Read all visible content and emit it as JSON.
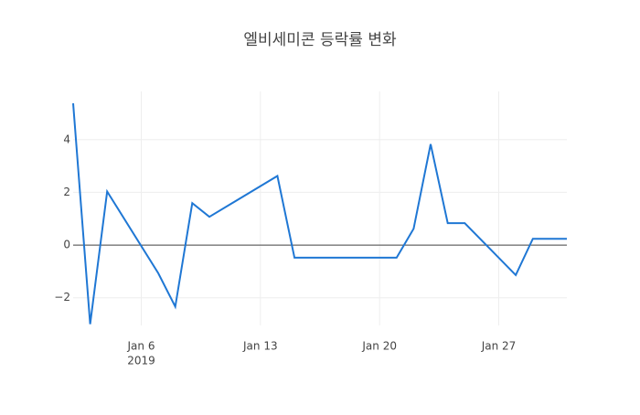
{
  "chart_data": {
    "type": "line",
    "title": "엘비세미콘 등락률 변화",
    "x": [
      "2019-01-02",
      "2019-01-03",
      "2019-01-04",
      "2019-01-07",
      "2019-01-08",
      "2019-01-09",
      "2019-01-10",
      "2019-01-14",
      "2019-01-15",
      "2019-01-16",
      "2019-01-17",
      "2019-01-18",
      "2019-01-21",
      "2019-01-22",
      "2019-01-23",
      "2019-01-24",
      "2019-01-25",
      "2019-01-28",
      "2019-01-29",
      "2019-01-30",
      "2019-01-31"
    ],
    "series": [
      {
        "name": "등락률",
        "color": "#1f77d4",
        "values": [
          5.38,
          -3.0,
          2.03,
          -1.07,
          -2.34,
          1.59,
          1.07,
          2.62,
          -0.48,
          -0.48,
          -0.48,
          -0.48,
          -0.48,
          0.62,
          3.83,
          0.83,
          0.83,
          -1.14,
          0.24,
          0.24,
          0.24
        ]
      }
    ],
    "xlim": [
      "2019-01-02",
      "2019-01-31"
    ],
    "xticks": [
      {
        "value": "2019-01-06",
        "label": "Jan 6"
      },
      {
        "value": "2019-01-13",
        "label": "Jan 13"
      },
      {
        "value": "2019-01-20",
        "label": "Jan 20"
      },
      {
        "value": "2019-01-27",
        "label": "Jan 27"
      }
    ],
    "x_year_label": "2019",
    "ylim": [
      -3.05,
      5.83
    ],
    "yticks": [
      {
        "value": -2,
        "label": "−2"
      },
      0,
      2,
      4
    ],
    "grid": true,
    "zero_line": true
  }
}
